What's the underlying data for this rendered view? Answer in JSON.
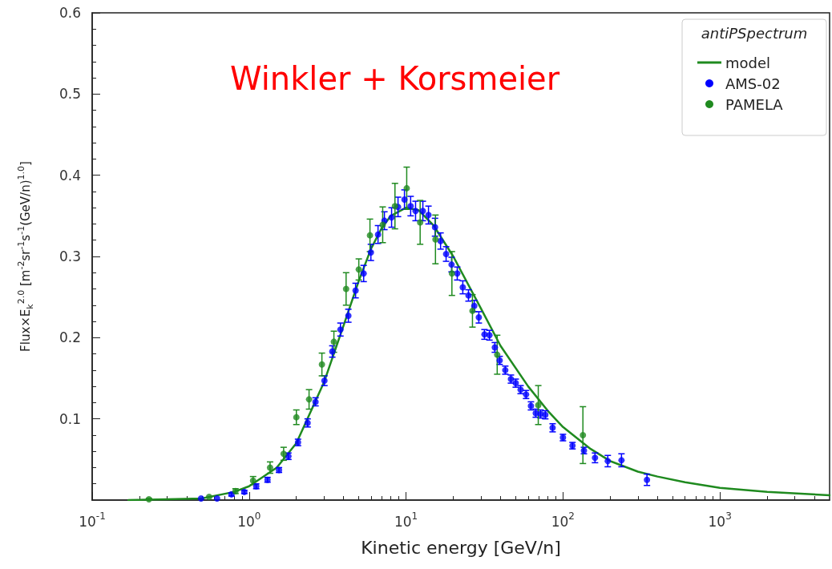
{
  "chart_data": {
    "type": "scatter",
    "xlabel": "Kinetic energy [GeV/n]",
    "ylabel": "Flux×E$_{k}$$^{2.0}$ [m$^{-2}$sr$^{-1}$s$^{-1}$(GeV/n)$^{1.0}$]",
    "legend_title": "antiPSpectrum",
    "annotations": [
      "Winkler + Korsmeier"
    ],
    "log": "x",
    "grid": false,
    "legend": "top right",
    "marker": "circle",
    "xlim": [
      0.1,
      5000
    ],
    "xticks": [
      {
        "value": 0.1,
        "label": "10$^{-1}$"
      },
      {
        "value": 1,
        "label": "10$^{0}$"
      },
      {
        "value": 10,
        "label": "10$^{1}$"
      },
      {
        "value": 100,
        "label": "10$^{2}$"
      },
      {
        "value": 1000,
        "label": "10$^{3}$"
      }
    ],
    "ylim": [
      0,
      0.6
    ],
    "yticks": [
      0.1,
      0.2,
      0.3,
      0.4,
      0.5,
      0.6
    ],
    "series": [
      {
        "name": "model",
        "type": "line",
        "color": "#1f8a1f",
        "line_style": "solid",
        "marker": "none",
        "x": [
          0.17,
          0.3,
          0.5,
          0.8,
          1,
          1.5,
          2,
          3,
          4,
          5,
          6,
          7,
          8,
          10,
          12,
          15,
          20,
          30,
          40,
          60,
          80,
          100,
          150,
          200,
          300,
          400,
          600,
          1000,
          2000,
          5000
        ],
        "values": [
          0,
          0.001,
          0.002,
          0.01,
          0.017,
          0.04,
          0.07,
          0.145,
          0.215,
          0.27,
          0.31,
          0.335,
          0.35,
          0.36,
          0.357,
          0.338,
          0.3,
          0.236,
          0.19,
          0.14,
          0.11,
          0.09,
          0.063,
          0.048,
          0.035,
          0.029,
          0.022,
          0.015,
          0.01,
          0.006
        ]
      },
      {
        "name": "AMS-02",
        "color": "#0000ff",
        "x": [
          0.494,
          0.625,
          0.772,
          0.932,
          1.11,
          1.31,
          1.55,
          1.78,
          2.05,
          2.36,
          2.65,
          3.02,
          3.39,
          3.82,
          4.29,
          4.77,
          5.37,
          5.97,
          6.63,
          7.28,
          8.09,
          8.89,
          9.77,
          10.7,
          11.5,
          12.8,
          13.9,
          15.3,
          16.6,
          18.0,
          19.5,
          21.2,
          23.0,
          25.0,
          27.2,
          29.1,
          31.6,
          34.0,
          36.8,
          39.5,
          42.9,
          46.6,
          50.0,
          53.7,
          58.2,
          62.5,
          67.1,
          72.0,
          77.2,
          85.9,
          100,
          115,
          136,
          160,
          193,
          236,
          343
        ],
        "values": [
          0.002,
          0.002,
          0.007,
          0.01,
          0.017,
          0.025,
          0.037,
          0.054,
          0.071,
          0.095,
          0.121,
          0.147,
          0.183,
          0.21,
          0.227,
          0.258,
          0.279,
          0.305,
          0.327,
          0.344,
          0.348,
          0.361,
          0.37,
          0.362,
          0.356,
          0.356,
          0.351,
          0.336,
          0.319,
          0.303,
          0.29,
          0.279,
          0.262,
          0.252,
          0.239,
          0.225,
          0.204,
          0.203,
          0.188,
          0.172,
          0.16,
          0.149,
          0.144,
          0.136,
          0.13,
          0.116,
          0.107,
          0.106,
          0.105,
          0.089,
          0.077,
          0.067,
          0.061,
          0.052,
          0.048,
          0.049,
          0.025
        ],
        "errors": [
          null,
          null,
          0.002,
          0.002,
          0.003,
          0.003,
          0.003,
          0.004,
          0.004,
          0.005,
          0.005,
          0.006,
          0.007,
          0.008,
          0.008,
          0.009,
          0.01,
          0.01,
          0.011,
          0.011,
          0.012,
          0.012,
          0.012,
          0.012,
          0.012,
          0.012,
          0.011,
          0.011,
          0.01,
          0.009,
          0.009,
          0.008,
          0.008,
          0.007,
          0.007,
          0.007,
          0.006,
          0.006,
          0.006,
          0.005,
          0.005,
          0.005,
          0.005,
          0.005,
          0.005,
          0.005,
          0.005,
          0.005,
          0.005,
          0.005,
          0.004,
          0.004,
          0.004,
          0.006,
          0.007,
          0.008,
          0.007
        ]
      },
      {
        "name": "PAMELA",
        "color": "#1f8a1f",
        "x": [
          0.23,
          0.556,
          0.819,
          1.06,
          1.36,
          1.66,
          2.0,
          2.41,
          2.91,
          3.47,
          4.15,
          5.0,
          5.89,
          7.1,
          8.5,
          10.1,
          12.3,
          15.4,
          19.6,
          26.5,
          38.1,
          69.6,
          134
        ],
        "values": [
          0.001,
          0.004,
          0.011,
          0.024,
          0.04,
          0.057,
          0.102,
          0.124,
          0.167,
          0.195,
          0.26,
          0.284,
          0.326,
          0.339,
          0.362,
          0.384,
          0.342,
          0.321,
          0.279,
          0.233,
          0.179,
          0.117,
          0.08
        ],
        "errors": [
          0.001,
          null,
          0.003,
          0.005,
          0.007,
          0.008,
          0.009,
          0.012,
          0.014,
          0.013,
          0.02,
          0.013,
          0.02,
          0.022,
          0.028,
          0.026,
          0.027,
          0.03,
          0.027,
          0.02,
          0.024,
          0.024,
          0.035
        ]
      }
    ]
  }
}
